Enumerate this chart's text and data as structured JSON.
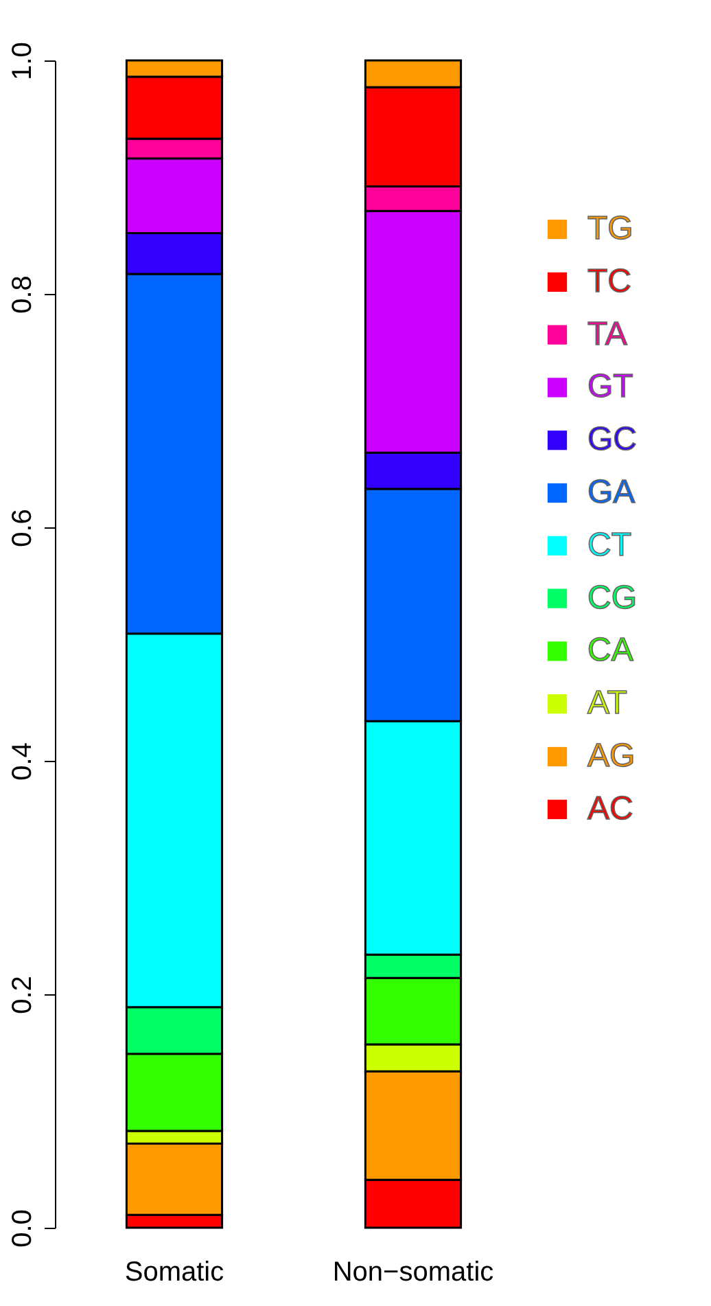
{
  "chart_data": {
    "type": "bar",
    "stacked": true,
    "categories": [
      "Somatic",
      "Non−somatic"
    ],
    "series": [
      {
        "name": "AC",
        "color": "#ff0000",
        "values": [
          0.011,
          0.041
        ]
      },
      {
        "name": "AG",
        "color": "#ff9900",
        "values": [
          0.061,
          0.093
        ]
      },
      {
        "name": "AT",
        "color": "#ccff00",
        "values": [
          0.011,
          0.023
        ]
      },
      {
        "name": "CA",
        "color": "#33ff00",
        "values": [
          0.066,
          0.057
        ]
      },
      {
        "name": "CG",
        "color": "#00ff66",
        "values": [
          0.04,
          0.02
        ]
      },
      {
        "name": "CT",
        "color": "#00ffff",
        "values": [
          0.32,
          0.2
        ]
      },
      {
        "name": "GA",
        "color": "#0066ff",
        "values": [
          0.308,
          0.199
        ]
      },
      {
        "name": "GC",
        "color": "#3300ff",
        "values": [
          0.035,
          0.031
        ]
      },
      {
        "name": "GT",
        "color": "#cc00ff",
        "values": [
          0.064,
          0.207
        ]
      },
      {
        "name": "TA",
        "color": "#ff0099",
        "values": [
          0.017,
          0.021
        ]
      },
      {
        "name": "TC",
        "color": "#ff0000",
        "values": [
          0.053,
          0.085
        ]
      },
      {
        "name": "TG",
        "color": "#ff9900",
        "values": [
          0.014,
          0.023
        ]
      }
    ],
    "ylim": [
      0,
      1
    ],
    "yticks": [
      {
        "value": 0,
        "label": "0.0"
      },
      0.2,
      0.4,
      0.6,
      0.8,
      {
        "value": 1,
        "label": "1.0"
      }
    ],
    "grid": false,
    "legend": "right"
  }
}
